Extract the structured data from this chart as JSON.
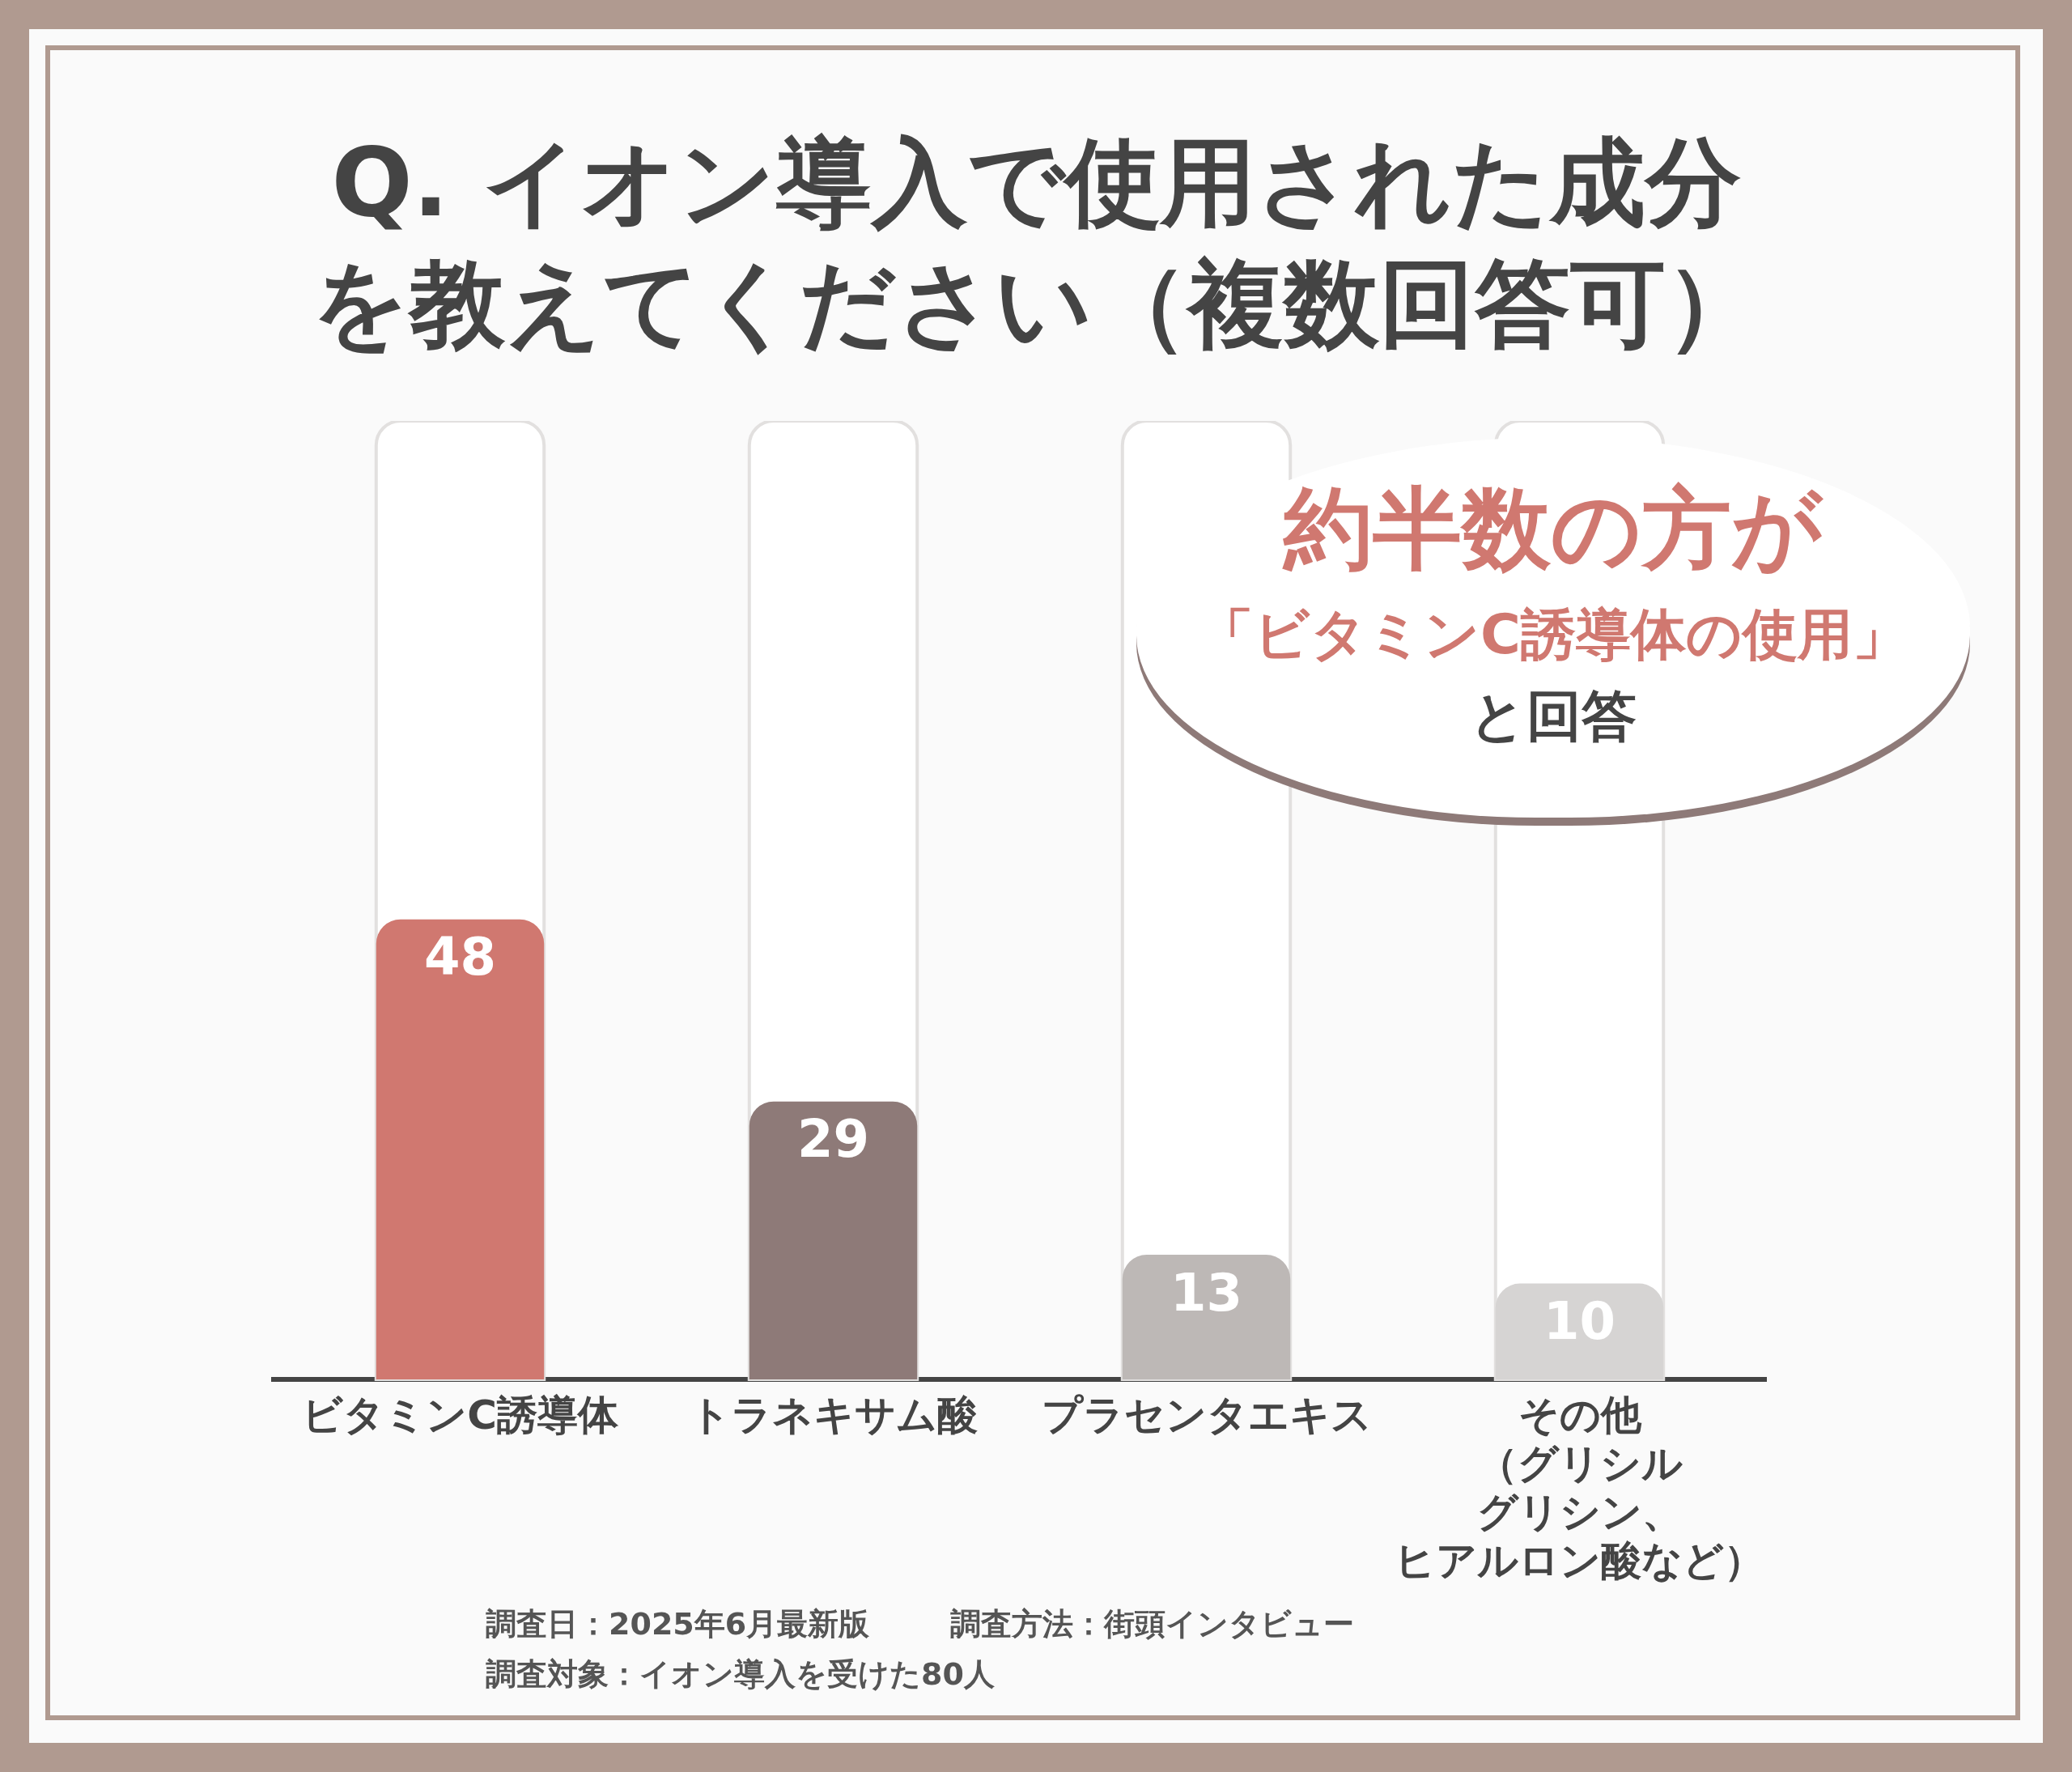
{
  "chart_data": {
    "type": "bar",
    "title": "Q. イオン導入で使用された成分を教えてください（複数回答可）",
    "categories": [
      "ビタミンC誘導体",
      "トラネキサム酸",
      "プラセンタエキス",
      "その他（グリシルグリシン、ヒアルロン酸など）"
    ],
    "values": [
      48,
      29,
      13,
      10
    ],
    "colors": [
      "#d07870",
      "#8e7a78",
      "#bdb8b6",
      "#d6d4d3"
    ],
    "ylim": [
      0,
      100
    ],
    "tick_labels": "x",
    "data_labels": true,
    "annotations": [
      "約半数の方が",
      "「ビタミンC誘導体の使用」",
      "と回答",
      "調査日：2025年6月最新版",
      "調査方法：街頭インタビュー",
      "調査対象：イオン導入を受けた80人"
    ]
  }
}
